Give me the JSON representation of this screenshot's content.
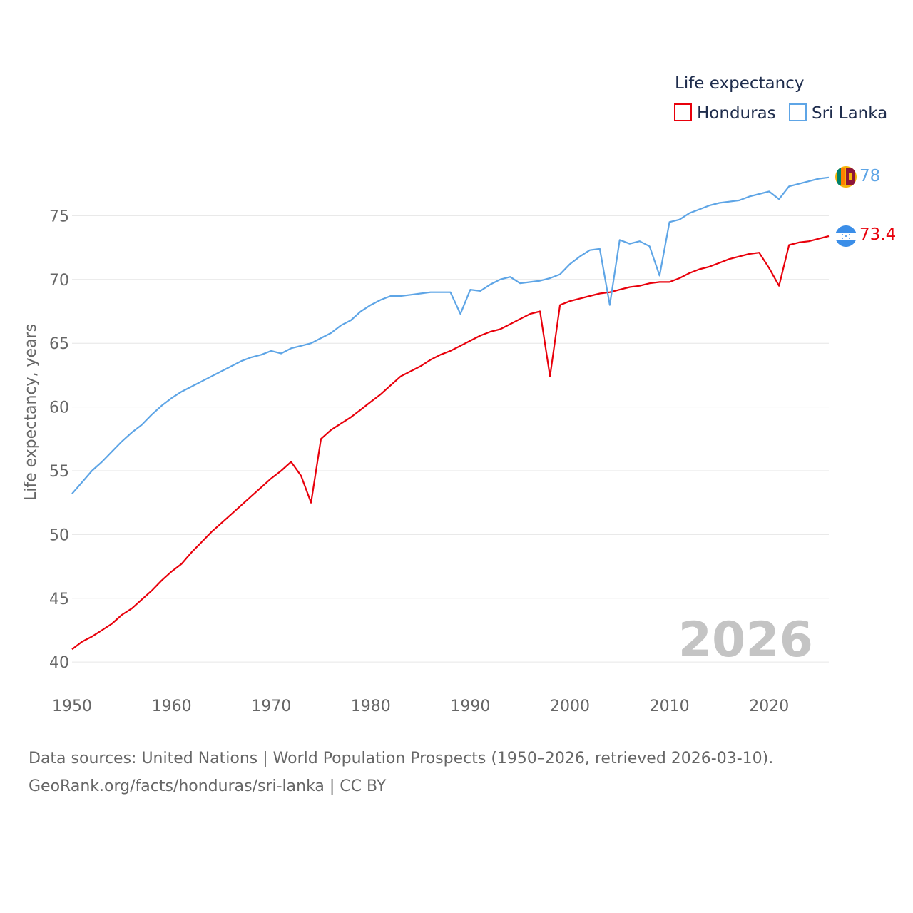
{
  "chart_data": {
    "type": "line",
    "legend_title": "Life expectancy",
    "ylabel": "Life expectancy, years",
    "xlabel": "",
    "xlim": [
      1950,
      2026
    ],
    "ylim": [
      38.5,
      80
    ],
    "x_ticks": [
      1950,
      1960,
      1970,
      1980,
      1990,
      2000,
      2010,
      2020
    ],
    "y_ticks": [
      40,
      45,
      50,
      55,
      60,
      65,
      70,
      75
    ],
    "year_label": "2026",
    "legend_position": "top-right",
    "x": [
      1950,
      1951,
      1952,
      1953,
      1954,
      1955,
      1956,
      1957,
      1958,
      1959,
      1960,
      1961,
      1962,
      1963,
      1964,
      1965,
      1966,
      1967,
      1968,
      1969,
      1970,
      1971,
      1972,
      1973,
      1974,
      1975,
      1976,
      1977,
      1978,
      1979,
      1980,
      1981,
      1982,
      1983,
      1984,
      1985,
      1986,
      1987,
      1988,
      1989,
      1990,
      1991,
      1992,
      1993,
      1994,
      1995,
      1996,
      1997,
      1998,
      1999,
      2000,
      2001,
      2002,
      2003,
      2004,
      2005,
      2006,
      2007,
      2008,
      2009,
      2010,
      2011,
      2012,
      2013,
      2014,
      2015,
      2016,
      2017,
      2018,
      2019,
      2020,
      2021,
      2022,
      2023,
      2024,
      2025,
      2026
    ],
    "series": [
      {
        "name": "Honduras",
        "color": "#e8000b",
        "end_label": "73.4",
        "flag": "honduras-flag-icon",
        "values": [
          41.0,
          41.6,
          42.0,
          42.5,
          43.0,
          43.7,
          44.2,
          44.9,
          45.6,
          46.4,
          47.1,
          47.7,
          48.6,
          49.4,
          50.2,
          50.9,
          51.6,
          52.3,
          53.0,
          53.7,
          54.4,
          55.0,
          55.7,
          54.6,
          52.5,
          57.5,
          58.2,
          58.7,
          59.2,
          59.8,
          60.4,
          61.0,
          61.7,
          62.4,
          62.8,
          63.2,
          63.7,
          64.1,
          64.4,
          64.8,
          65.2,
          65.6,
          65.9,
          66.1,
          66.5,
          66.9,
          67.3,
          67.5,
          62.4,
          68.0,
          68.3,
          68.5,
          68.7,
          68.9,
          69.0,
          69.2,
          69.4,
          69.5,
          69.7,
          69.8,
          69.8,
          70.1,
          70.5,
          70.8,
          71.0,
          71.3,
          71.6,
          71.8,
          72.0,
          72.1,
          70.9,
          69.5,
          72.7,
          72.9,
          73.0,
          73.2,
          73.4
        ]
      },
      {
        "name": "Sri Lanka",
        "color": "#5ea5e6",
        "end_label": "78",
        "flag": "sri-lanka-flag-icon",
        "values": [
          53.2,
          54.1,
          55.0,
          55.7,
          56.5,
          57.3,
          58.0,
          58.6,
          59.4,
          60.1,
          60.7,
          61.2,
          61.6,
          62.0,
          62.4,
          62.8,
          63.2,
          63.6,
          63.9,
          64.1,
          64.4,
          64.2,
          64.6,
          64.8,
          65.0,
          65.4,
          65.8,
          66.4,
          66.8,
          67.5,
          68.0,
          68.4,
          68.7,
          68.7,
          68.8,
          68.9,
          69.0,
          69.0,
          69.0,
          67.3,
          69.2,
          69.1,
          69.6,
          70.0,
          70.2,
          69.7,
          69.8,
          69.9,
          70.1,
          70.4,
          71.2,
          71.8,
          72.3,
          72.4,
          68.0,
          73.1,
          72.8,
          73.0,
          72.6,
          70.3,
          74.5,
          74.7,
          75.2,
          75.5,
          75.8,
          76.0,
          76.1,
          76.2,
          76.5,
          76.7,
          76.9,
          76.3,
          77.3,
          77.5,
          77.7,
          77.9,
          78.0
        ]
      }
    ]
  },
  "footer": {
    "source_line": "Data sources: United Nations | World Population Prospects (1950–2026, retrieved 2026-03-10).",
    "attribution_line": "GeoRank.org/facts/honduras/sri-lanka | CC BY"
  }
}
